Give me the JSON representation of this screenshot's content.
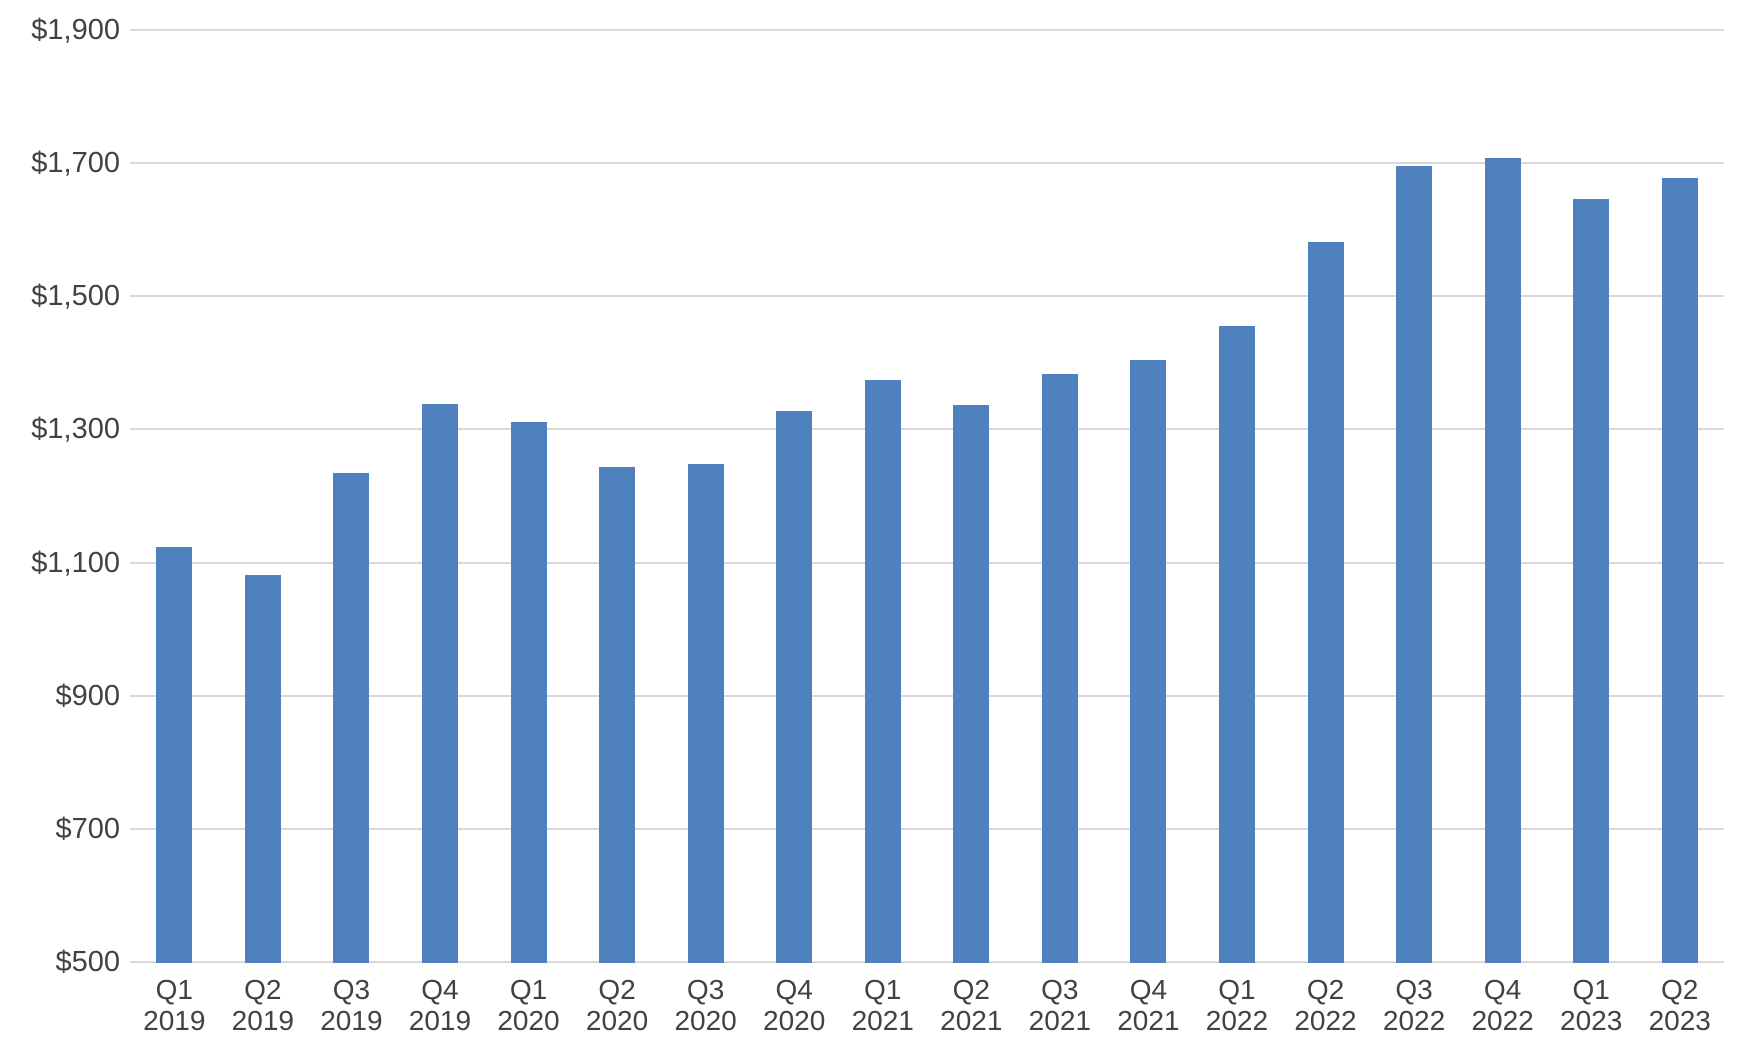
{
  "chart_data": {
    "type": "bar",
    "title": "",
    "xlabel": "",
    "ylabel": "",
    "categories": [
      "Q1 2019",
      "Q2 2019",
      "Q3 2019",
      "Q4 2019",
      "Q1 2020",
      "Q2 2020",
      "Q3 2020",
      "Q4 2020",
      "Q1 2021",
      "Q2 2021",
      "Q3 2021",
      "Q4 2021",
      "Q1 2022",
      "Q2 2022",
      "Q3 2022",
      "Q4 2022",
      "Q1 2023",
      "Q2 2023"
    ],
    "values": [
      1123,
      1082,
      1235,
      1338,
      1311,
      1244,
      1248,
      1328,
      1374,
      1337,
      1383,
      1405,
      1455,
      1581,
      1696,
      1707,
      1646,
      1677
    ],
    "ylim": [
      500,
      1900
    ],
    "yticks": [
      {
        "value": 500,
        "label": "$500"
      },
      {
        "value": 700,
        "label": "$700"
      },
      {
        "value": 900,
        "label": "$900"
      },
      {
        "value": 1100,
        "label": "$1,100"
      },
      {
        "value": 1300,
        "label": "$1,300"
      },
      {
        "value": 1500,
        "label": "$1,500"
      },
      {
        "value": 1700,
        "label": "$1,700"
      },
      {
        "value": 1900,
        "label": "$1,900"
      }
    ],
    "grid": true,
    "legend": false,
    "colors": {
      "bar": "#4e81bd",
      "gridline": "#d9d9d9",
      "axis_text": "#424242",
      "background": "#ffffff"
    }
  }
}
